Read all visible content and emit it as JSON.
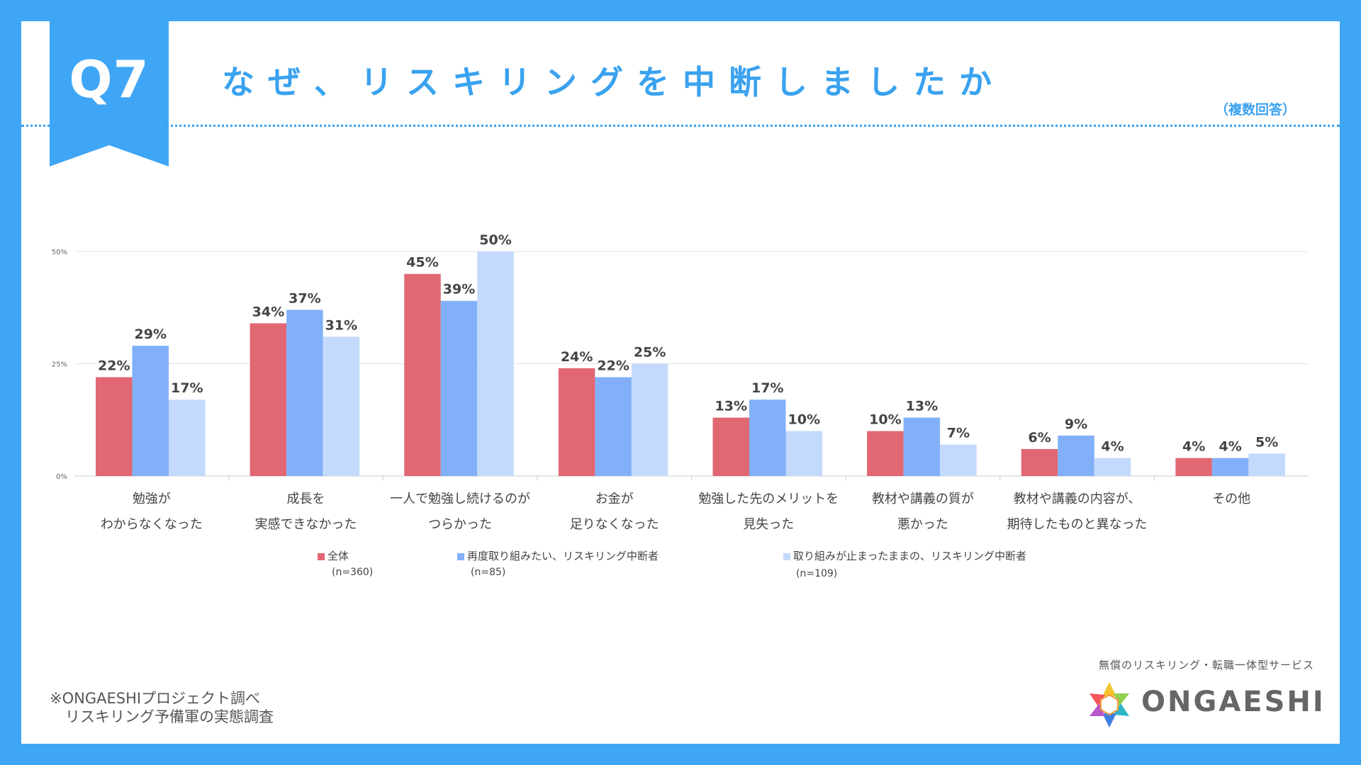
{
  "header": {
    "q_label": "Q7",
    "title": "なぜ、リスキリングを中断しましたか",
    "note": "（複数回答）"
  },
  "footer": {
    "source_line1": "※ONGAESHIプロジェクト調べ",
    "source_line2": "リスキリング予備軍の実態調査",
    "tagline": "無償のリスキリング・転職一体型サービス",
    "brand": "ONGAESHI"
  },
  "colors": {
    "background": "#3fa6f5",
    "accent": "#3aa2ef",
    "series": [
      "#e16773",
      "#82b0f8",
      "#c3dafc"
    ]
  },
  "chart_data": {
    "type": "bar",
    "categories": [
      [
        "勉強が",
        "わからなくなった"
      ],
      [
        "成長を",
        "実感できなかった"
      ],
      [
        "一人で勉強し続けるのが",
        "つらかった"
      ],
      [
        "お金が",
        "足りなくなった"
      ],
      [
        "勉強した先のメリットを",
        "見失った"
      ],
      [
        "教材や講義の質が",
        "悪かった"
      ],
      [
        "教材や講義の内容が、",
        "期待したものと異なった"
      ],
      [
        "その他"
      ]
    ],
    "series": [
      {
        "name": "全体",
        "n": "(n=360)",
        "values": [
          22,
          34,
          45,
          24,
          13,
          10,
          6,
          4
        ]
      },
      {
        "name": "再度取り組みたい、リスキリング中断者",
        "n": "(n=85)",
        "values": [
          29,
          37,
          39,
          22,
          17,
          13,
          9,
          4
        ]
      },
      {
        "name": "取り組みが止まったままの、リスキリング中断者",
        "n": "(n=109)",
        "values": [
          17,
          31,
          50,
          25,
          10,
          7,
          4,
          5
        ]
      }
    ],
    "ylim": [
      0,
      50
    ],
    "yticks": [
      "0%",
      "25%",
      "50%"
    ],
    "grid": true,
    "legend": "bottom"
  }
}
